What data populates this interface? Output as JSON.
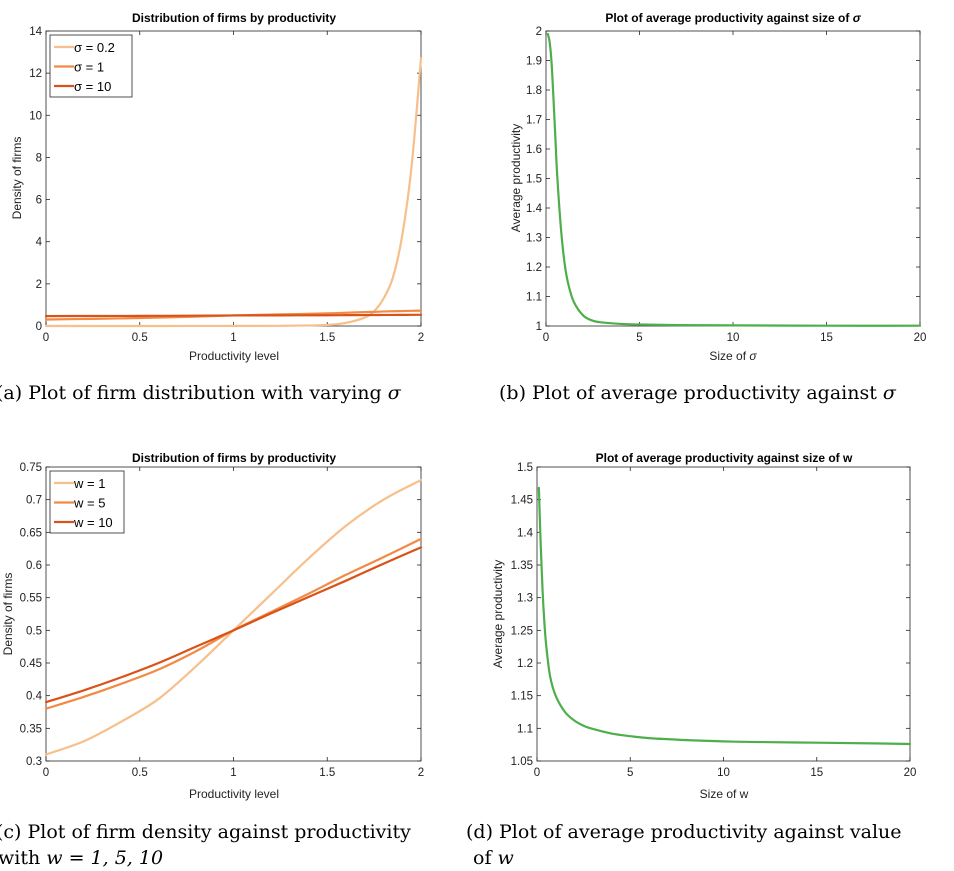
{
  "panels": [
    {
      "id": "a",
      "title_main": "Distribution of firms by productivity",
      "title_sym": "",
      "xlabel_main": "Productivity level",
      "xlabel_sym": "",
      "ylabel_main": "Density of firms",
      "caption_lines": [
        [
          "(a) Plot of firm distribution with varying ",
          "σ"
        ]
      ],
      "legend_position": "top-left"
    },
    {
      "id": "b",
      "title_main": "Plot of average productivity against size of ",
      "title_sym": "σ",
      "xlabel_main": "Size of ",
      "xlabel_sym": "σ",
      "ylabel_main": "Average productivity",
      "caption_lines": [
        [
          "(b) Plot of average productivity against ",
          "σ"
        ]
      ],
      "legend_position": ""
    },
    {
      "id": "c",
      "title_main": "Distribution of firms by productivity",
      "title_sym": "",
      "xlabel_main": "Productivity level",
      "xlabel_sym": "",
      "ylabel_main": "Density of firms",
      "caption_lines": [
        [
          "(c) Plot of firm density against productivity",
          ""
        ],
        [
          "with ",
          "w = 1, 5, 10"
        ]
      ],
      "legend_position": "top-left"
    },
    {
      "id": "d",
      "title_main": "Plot of average productivity against size of w",
      "title_sym": "",
      "xlabel_main": "Size of w",
      "xlabel_sym": "",
      "ylabel_main": "Average productivity",
      "caption_lines": [
        [
          "(d) Plot of average productivity against value",
          ""
        ],
        [
          "of ",
          "w"
        ]
      ],
      "legend_position": ""
    }
  ],
  "colors": {
    "light_orange": "#f7bf8b",
    "mid_orange": "#f28a45",
    "dark_orange": "#d95318",
    "green": "#4daf4a",
    "axis": "#262626"
  },
  "chart_data": [
    {
      "type": "line",
      "panel": "a",
      "title": "Distribution of firms by productivity",
      "xlabel": "Productivity level",
      "ylabel": "Density of firms",
      "xlim": [
        0,
        2
      ],
      "ylim": [
        0,
        14
      ],
      "xticks": [
        "0",
        "0.5",
        "1",
        "1.5",
        "2"
      ],
      "yticks": [
        "0",
        "2",
        "4",
        "6",
        "8",
        "10",
        "12",
        "14"
      ],
      "grid": false,
      "legend": "top-left",
      "x": [
        0,
        0.25,
        0.5,
        0.75,
        1,
        1.25,
        1.5,
        1.6,
        1.7,
        1.75,
        1.8,
        1.85,
        1.9,
        1.95,
        2
      ],
      "series": [
        {
          "name": "σ = 0.2",
          "color": "light_orange",
          "values": [
            0,
            0,
            0,
            0.002,
            0.005,
            0.01,
            0.05,
            0.15,
            0.4,
            0.7,
            1.3,
            2.3,
            4.3,
            7.6,
            12.7
          ]
        },
        {
          "name": "σ = 1",
          "color": "mid_orange",
          "values": [
            0.31,
            0.34,
            0.38,
            0.43,
            0.5,
            0.55,
            0.6,
            0.63,
            0.66,
            0.67,
            0.69,
            0.7,
            0.71,
            0.72,
            0.73
          ]
        },
        {
          "name": "σ = 10",
          "color": "dark_orange",
          "values": [
            0.47,
            0.475,
            0.48,
            0.49,
            0.5,
            0.505,
            0.51,
            0.515,
            0.52,
            0.522,
            0.524,
            0.526,
            0.528,
            0.53,
            0.53
          ]
        }
      ]
    },
    {
      "type": "line",
      "panel": "b",
      "title": "Plot of average productivity against size of σ",
      "xlabel": "Size of σ",
      "ylabel": "Average productivity",
      "xlim": [
        0,
        20
      ],
      "ylim": [
        1,
        2
      ],
      "xticks": [
        "0",
        "5",
        "10",
        "15",
        "20"
      ],
      "yticks": [
        "1",
        "1.1",
        "1.2",
        "1.3",
        "1.4",
        "1.5",
        "1.6",
        "1.7",
        "1.8",
        "1.9",
        "2"
      ],
      "grid": false,
      "x": [
        0.1,
        0.2,
        0.3,
        0.4,
        0.5,
        0.6,
        0.8,
        1.0,
        1.2,
        1.5,
        2,
        2.5,
        3,
        4,
        5,
        7,
        10,
        15,
        20
      ],
      "series": [
        {
          "color": "green",
          "values": [
            1.99,
            1.96,
            1.89,
            1.77,
            1.64,
            1.51,
            1.33,
            1.21,
            1.14,
            1.08,
            1.035,
            1.018,
            1.012,
            1.007,
            1.005,
            1.003,
            1.002,
            1.001,
            1.001
          ]
        }
      ]
    },
    {
      "type": "line",
      "panel": "c",
      "title": "Distribution of firms by productivity",
      "xlabel": "Productivity level",
      "ylabel": "Density of firms",
      "xlim": [
        0,
        2
      ],
      "ylim": [
        0.3,
        0.75
      ],
      "xticks": [
        "0",
        "0.5",
        "1",
        "1.5",
        "2"
      ],
      "yticks": [
        "0.3",
        "0.35",
        "0.4",
        "0.45",
        "0.5",
        "0.55",
        "0.6",
        "0.65",
        "0.7",
        "0.75"
      ],
      "grid": false,
      "legend": "top-left",
      "x": [
        0,
        0.2,
        0.4,
        0.6,
        0.8,
        1.0,
        1.2,
        1.4,
        1.6,
        1.8,
        2.0
      ],
      "series": [
        {
          "name": "w = 1",
          "color": "light_orange",
          "values": [
            0.31,
            0.33,
            0.36,
            0.395,
            0.445,
            0.5,
            0.555,
            0.61,
            0.66,
            0.7,
            0.73
          ]
        },
        {
          "name": "w = 5",
          "color": "mid_orange",
          "values": [
            0.38,
            0.398,
            0.418,
            0.44,
            0.468,
            0.5,
            0.528,
            0.556,
            0.585,
            0.612,
            0.64
          ]
        },
        {
          "name": "w = 10",
          "color": "dark_orange",
          "values": [
            0.39,
            0.408,
            0.428,
            0.45,
            0.475,
            0.5,
            0.526,
            0.551,
            0.576,
            0.602,
            0.627
          ]
        }
      ]
    },
    {
      "type": "line",
      "panel": "d",
      "title": "Plot of average productivity against size of w",
      "xlabel": "Size of w",
      "ylabel": "Average productivity",
      "xlim": [
        0,
        20
      ],
      "ylim": [
        1.05,
        1.5
      ],
      "xticks": [
        "0",
        "5",
        "10",
        "15",
        "20"
      ],
      "yticks": [
        "1.05",
        "1.1",
        "1.15",
        "1.2",
        "1.25",
        "1.3",
        "1.35",
        "1.4",
        "1.45",
        "1.5"
      ],
      "grid": false,
      "x": [
        0.1,
        0.2,
        0.3,
        0.4,
        0.5,
        0.7,
        1.0,
        1.5,
        2,
        2.5,
        3,
        4,
        5,
        6,
        8,
        10,
        12,
        15,
        18,
        20
      ],
      "series": [
        {
          "color": "green",
          "values": [
            1.468,
            1.38,
            1.31,
            1.26,
            1.225,
            1.18,
            1.15,
            1.125,
            1.112,
            1.104,
            1.099,
            1.092,
            1.088,
            1.085,
            1.082,
            1.08,
            1.079,
            1.078,
            1.077,
            1.076
          ]
        }
      ]
    }
  ]
}
